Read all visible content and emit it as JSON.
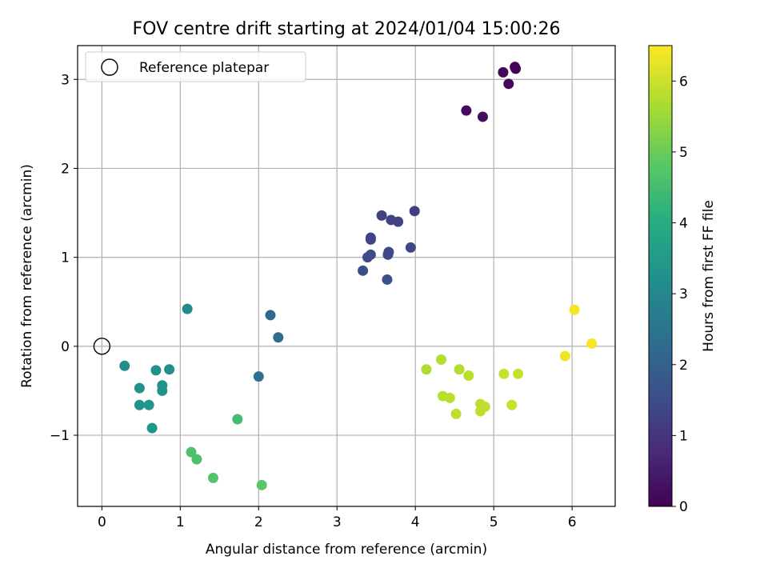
{
  "chart_data": {
    "type": "scatter",
    "title": "FOV centre drift starting at 2024/01/04 15:00:26",
    "xlabel": "Angular distance from reference (arcmin)",
    "ylabel": "Rotation from reference (arcmin)",
    "xlim": [
      -0.31,
      6.55
    ],
    "ylim": [
      -1.8,
      3.38
    ],
    "xticks": [
      0,
      1,
      2,
      3,
      4,
      5,
      6
    ],
    "yticks": [
      -1,
      0,
      1,
      2,
      3
    ],
    "xtick_labels": [
      "0",
      "1",
      "2",
      "3",
      "4",
      "5",
      "6"
    ],
    "ytick_labels": [
      "−1",
      "0",
      "1",
      "2",
      "3"
    ],
    "grid": true,
    "legend": {
      "location": "upper-left",
      "entries": [
        "Reference platepar"
      ]
    },
    "reference_point": {
      "x": 0,
      "y": 0
    },
    "colorbar": {
      "label": "Hours from first FF file",
      "range": [
        0,
        6.5
      ],
      "ticks": [
        0,
        1,
        2,
        3,
        4,
        5,
        6
      ],
      "tick_labels": [
        "0",
        "1",
        "2",
        "3",
        "4",
        "5",
        "6"
      ],
      "colormap": "viridis"
    },
    "points": [
      {
        "x": 5.27,
        "y": 3.14,
        "c": 0.05
      },
      {
        "x": 5.28,
        "y": 3.12,
        "c": 0.08
      },
      {
        "x": 5.12,
        "y": 3.08,
        "c": 0.12
      },
      {
        "x": 5.19,
        "y": 2.95,
        "c": 0.15
      },
      {
        "x": 4.65,
        "y": 2.65,
        "c": 0.2
      },
      {
        "x": 4.86,
        "y": 2.58,
        "c": 0.25
      },
      {
        "x": 3.99,
        "y": 1.52,
        "c": 1.2
      },
      {
        "x": 3.57,
        "y": 1.47,
        "c": 1.25
      },
      {
        "x": 3.69,
        "y": 1.42,
        "c": 1.3
      },
      {
        "x": 3.78,
        "y": 1.4,
        "c": 1.3
      },
      {
        "x": 3.43,
        "y": 1.22,
        "c": 1.35
      },
      {
        "x": 3.43,
        "y": 1.2,
        "c": 1.35
      },
      {
        "x": 3.94,
        "y": 1.11,
        "c": 1.4
      },
      {
        "x": 3.66,
        "y": 1.06,
        "c": 1.45
      },
      {
        "x": 3.65,
        "y": 1.03,
        "c": 1.45
      },
      {
        "x": 3.43,
        "y": 1.03,
        "c": 1.5
      },
      {
        "x": 3.39,
        "y": 1.0,
        "c": 1.5
      },
      {
        "x": 3.33,
        "y": 0.85,
        "c": 1.55
      },
      {
        "x": 3.64,
        "y": 0.75,
        "c": 1.55
      },
      {
        "x": 2.15,
        "y": 0.35,
        "c": 2.2
      },
      {
        "x": 2.25,
        "y": 0.1,
        "c": 2.3
      },
      {
        "x": 2.0,
        "y": -0.34,
        "c": 2.4
      },
      {
        "x": 1.09,
        "y": 0.42,
        "c": 3.1
      },
      {
        "x": 0.29,
        "y": -0.22,
        "c": 3.15
      },
      {
        "x": 0.69,
        "y": -0.27,
        "c": 3.2
      },
      {
        "x": 0.86,
        "y": -0.26,
        "c": 3.2
      },
      {
        "x": 0.48,
        "y": -0.47,
        "c": 3.25
      },
      {
        "x": 0.77,
        "y": -0.44,
        "c": 3.25
      },
      {
        "x": 0.77,
        "y": -0.5,
        "c": 3.3
      },
      {
        "x": 0.48,
        "y": -0.66,
        "c": 3.3
      },
      {
        "x": 0.6,
        "y": -0.66,
        "c": 3.35
      },
      {
        "x": 0.64,
        "y": -0.92,
        "c": 3.4
      },
      {
        "x": 1.73,
        "y": -0.82,
        "c": 4.5
      },
      {
        "x": 1.14,
        "y": -1.19,
        "c": 4.6
      },
      {
        "x": 1.21,
        "y": -1.27,
        "c": 4.6
      },
      {
        "x": 1.42,
        "y": -1.48,
        "c": 4.7
      },
      {
        "x": 2.04,
        "y": -1.56,
        "c": 4.8
      },
      {
        "x": 4.14,
        "y": -0.26,
        "c": 5.7
      },
      {
        "x": 4.33,
        "y": -0.15,
        "c": 5.75
      },
      {
        "x": 4.56,
        "y": -0.26,
        "c": 5.75
      },
      {
        "x": 4.68,
        "y": -0.33,
        "c": 5.8
      },
      {
        "x": 4.35,
        "y": -0.56,
        "c": 5.8
      },
      {
        "x": 4.44,
        "y": -0.58,
        "c": 5.8
      },
      {
        "x": 4.52,
        "y": -0.76,
        "c": 5.85
      },
      {
        "x": 4.83,
        "y": -0.65,
        "c": 5.85
      },
      {
        "x": 4.83,
        "y": -0.73,
        "c": 5.85
      },
      {
        "x": 4.89,
        "y": -0.68,
        "c": 5.9
      },
      {
        "x": 5.13,
        "y": -0.31,
        "c": 5.95
      },
      {
        "x": 5.31,
        "y": -0.31,
        "c": 5.95
      },
      {
        "x": 5.23,
        "y": -0.66,
        "c": 5.95
      },
      {
        "x": 5.91,
        "y": -0.11,
        "c": 6.35
      },
      {
        "x": 6.03,
        "y": 0.41,
        "c": 6.4
      },
      {
        "x": 6.25,
        "y": 0.03,
        "c": 6.45
      }
    ]
  }
}
